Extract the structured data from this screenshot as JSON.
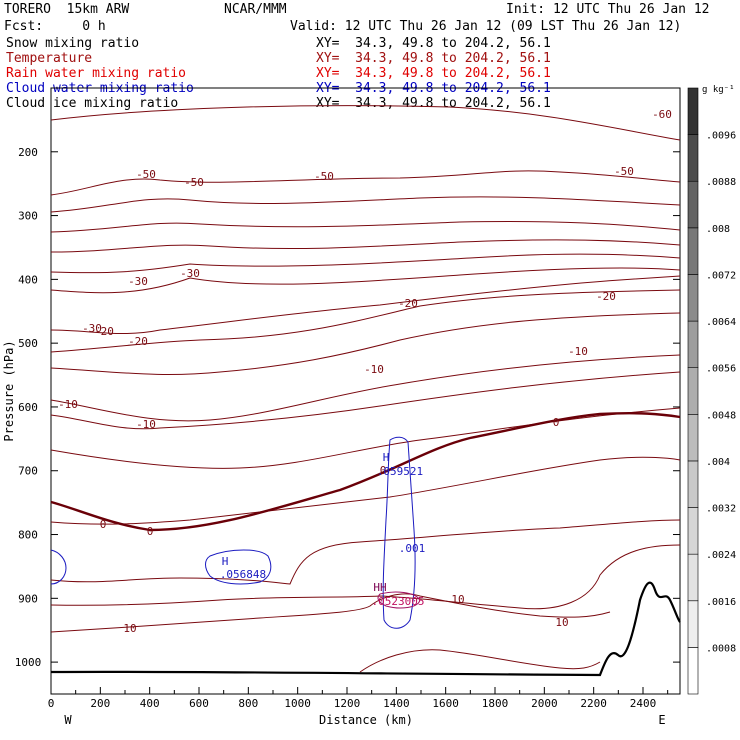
{
  "header": {
    "model": "TORERO  15km ARW",
    "center": "NCAR/MMM",
    "init": "Init: 12 UTC Thu 26 Jan 12",
    "fcst": "Fcst:     0 h",
    "valid": "Valid: 12 UTC Thu 26 Jan 12 (09 LST Thu 26 Jan 12)"
  },
  "fields": [
    {
      "name": "Snow mixing ratio",
      "xy": "XY=  34.3, 49.8 to 204.2, 56.1",
      "color": "#000000"
    },
    {
      "name": "Temperature",
      "xy": "XY=  34.3, 49.8 to 204.2, 56.1",
      "color": "#a01010"
    },
    {
      "name": "Rain water mixing ratio",
      "xy": "XY=  34.3, 49.8 to 204.2, 56.1",
      "color": "#e00000"
    },
    {
      "name": "Cloud water mixing ratio",
      "xy": "XY=  34.3, 49.8 to 204.2, 56.1",
      "color": "#0000c0"
    },
    {
      "name": "Cloud ice mixing ratio",
      "xy": "XY=  34.3, 49.8 to 204.2, 56.1",
      "color": "#000000"
    }
  ],
  "chart_data": {
    "type": "contour cross-section",
    "xlabel": "Distance (km)",
    "ylabel": "Pressure (hPa)",
    "xlim": [
      0,
      2550
    ],
    "ylim": [
      1050,
      100
    ],
    "x_ticks": [
      0,
      200,
      400,
      600,
      800,
      1000,
      1200,
      1400,
      1600,
      1800,
      2000,
      2200,
      2400
    ],
    "y_ticks": [
      200,
      300,
      400,
      500,
      600,
      700,
      800,
      900,
      1000
    ],
    "x_end_labels": {
      "left": "W",
      "right": "E"
    },
    "temperature_contour_labels": [
      "-60",
      "-50",
      "-50",
      "-50",
      "-50",
      "-30",
      "-30",
      "-30",
      "-20",
      "-20",
      "-20",
      "-20",
      "-10",
      "-10",
      "-10",
      "-10",
      "0",
      "0",
      "0",
      "0",
      "10",
      "10",
      "10"
    ],
    "cloud_water_labels": [
      "H",
      ".059521",
      "H",
      ".056848",
      ".001"
    ],
    "overlap_labels": [
      "HH",
      ".0523005"
    ],
    "colorbar": {
      "unit": "g kg⁻¹",
      "levels": [
        ".0008",
        ".0016",
        ".0024",
        ".0032",
        ".004",
        ".0048",
        ".0056",
        ".0064",
        ".0072",
        ".008",
        ".0088",
        ".0096"
      ],
      "colors": [
        "#ffffff",
        "#efefef",
        "#e2e2e2",
        "#d6d6d6",
        "#c9c9c9",
        "#bcbcbc",
        "#adadad",
        "#9d9d9d",
        "#8b8b8b",
        "#787878",
        "#636363",
        "#4c4c4c",
        "#333333"
      ]
    }
  }
}
